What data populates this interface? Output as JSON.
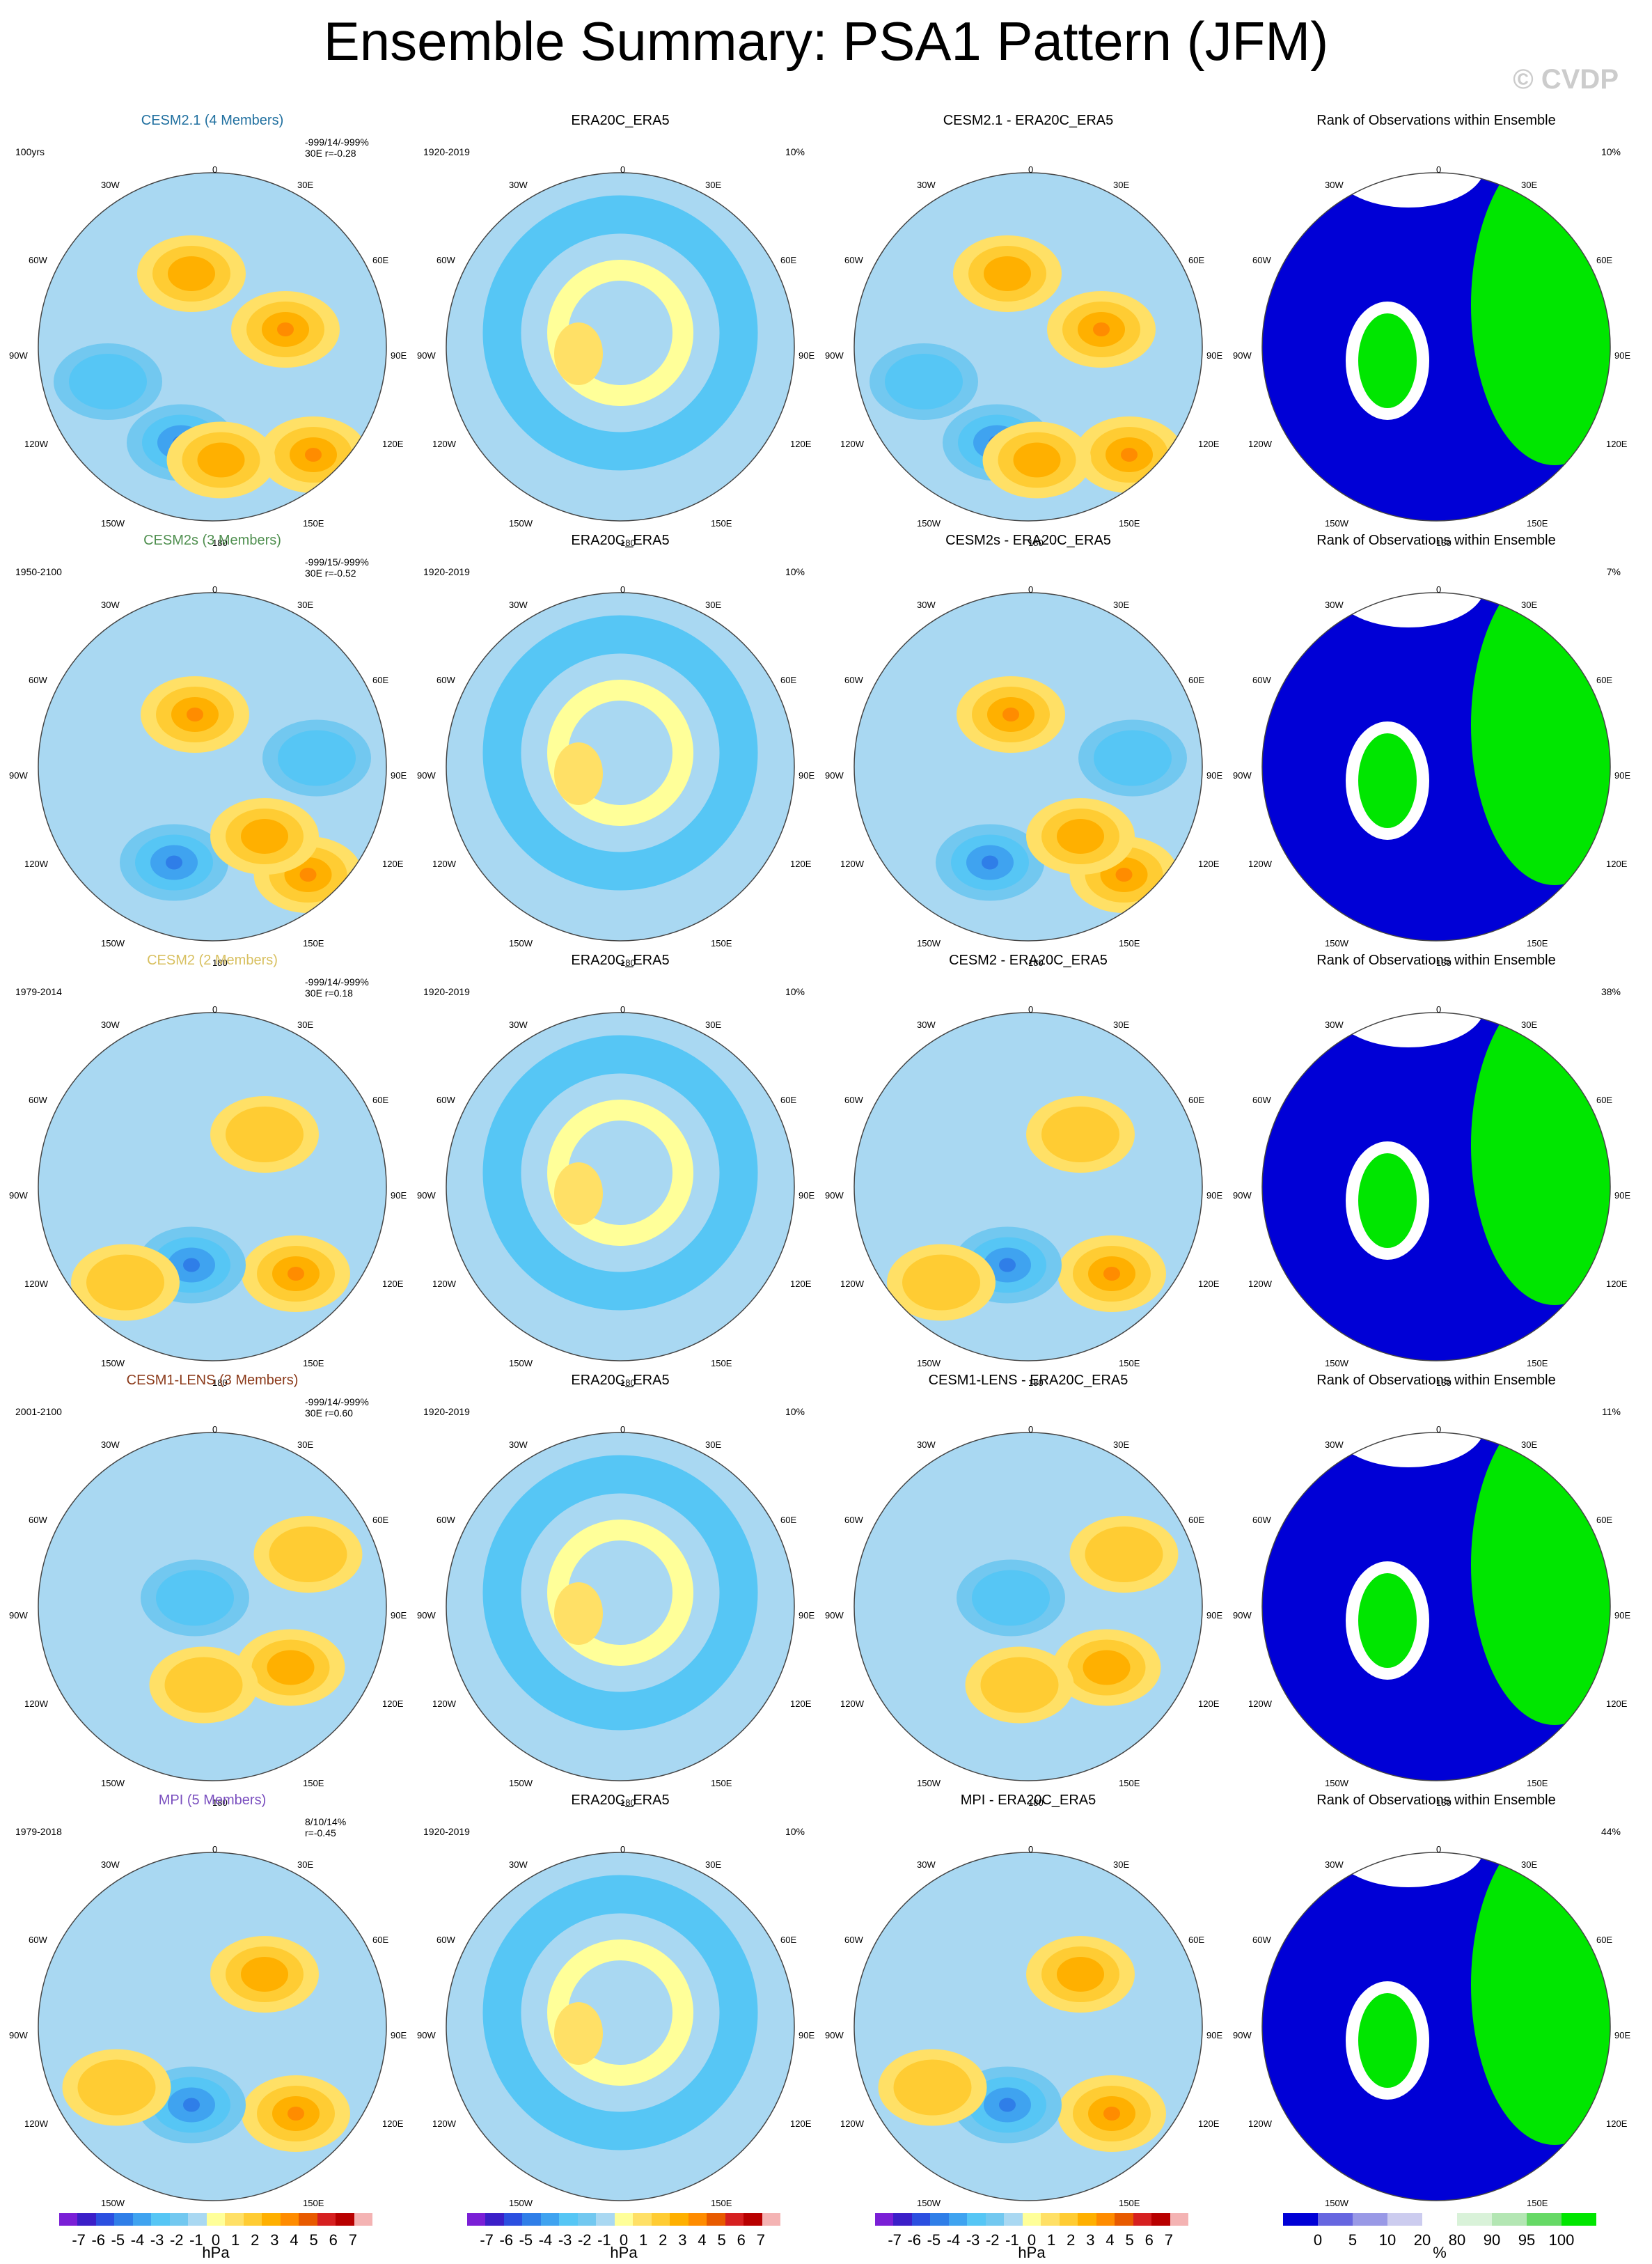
{
  "title": "Ensemble Summary: PSA1 Pattern (JFM)",
  "watermark": "© CVDP",
  "coord_labels": {
    "top": "0",
    "bottom": "180",
    "left": "90W",
    "right": "90E",
    "nl": "60W",
    "nr": "60E",
    "tl": "30W",
    "tr": "30E",
    "ul": "120W",
    "ur": "120E",
    "bl": "150W",
    "br": "150E"
  },
  "rows": [
    {
      "model": "CESM2.1 (4 Members)",
      "model_color": "#1f6f9f",
      "period": "100yrs",
      "stats": [
        "-999/14/-999%",
        "30E r=-0.28"
      ],
      "rank_pct": "10%",
      "diff_title": "CESM2.1 - ERA20C_ERA5",
      "lobes": [
        [
          0.58,
          0.62,
          1.6
        ],
        [
          -0.12,
          -0.42,
          1.0
        ],
        [
          -0.18,
          0.55,
          -1.7
        ],
        [
          0.42,
          -0.1,
          1.2
        ],
        [
          0.05,
          0.65,
          0.9
        ],
        [
          -0.6,
          0.2,
          -0.8
        ]
      ]
    },
    {
      "model": "CESM2s (3 Members)",
      "model_color": "#4f8f4f",
      "period": "1950-2100",
      "stats": [
        "-999/15/-999%",
        "30E r=-0.52"
      ],
      "rank_pct": "7%",
      "diff_title": "CESM2s - ERA20C_ERA5",
      "lobes": [
        [
          0.55,
          0.62,
          1.2
        ],
        [
          -0.1,
          -0.3,
          1.6
        ],
        [
          -0.22,
          0.55,
          -1.9
        ],
        [
          0.6,
          -0.05,
          -0.8
        ],
        [
          0.3,
          0.4,
          1.0
        ]
      ]
    },
    {
      "model": "CESM2 (2 Members)",
      "model_color": "#d8c060",
      "period": "1979-2014",
      "stats": [
        "-999/14/-999%",
        "30E r=0.18"
      ],
      "rank_pct": "38%",
      "diff_title": "CESM2 - ERA20C_ERA5",
      "lobes": [
        [
          0.48,
          0.5,
          1.3
        ],
        [
          -0.12,
          0.45,
          -1.7
        ],
        [
          0.3,
          -0.3,
          0.8
        ],
        [
          -0.5,
          0.55,
          0.6
        ]
      ]
    },
    {
      "model": "CESM1-LENS (3 Members)",
      "model_color": "#8b3a1a",
      "period": "2001-2100",
      "stats": [
        "-999/14/-999%",
        "30E r=0.60"
      ],
      "rank_pct": "11%",
      "diff_title": "CESM1-LENS - ERA20C_ERA5",
      "lobes": [
        [
          0.45,
          0.35,
          0.9
        ],
        [
          -0.05,
          0.45,
          0.8
        ],
        [
          0.55,
          -0.3,
          0.7
        ],
        [
          -0.1,
          -0.05,
          -0.5
        ]
      ]
    },
    {
      "model": "MPI (5 Members)",
      "model_color": "#7a4fbf",
      "period": "1979-2018",
      "stats": [
        "8/10/14%",
        " r=-0.45"
      ],
      "rank_pct": "44%",
      "diff_title": "MPI - ERA20C_ERA5",
      "lobes": [
        [
          0.48,
          0.5,
          1.3
        ],
        [
          -0.12,
          0.45,
          -1.6
        ],
        [
          0.3,
          -0.3,
          1.0
        ],
        [
          -0.55,
          0.35,
          0.7
        ]
      ]
    }
  ],
  "obs_title": "ERA20C_ERA5",
  "obs_period": "1920-2019",
  "obs_pct": "10%",
  "rank_title": "Rank of Observations within Ensemble",
  "palette_hpa": [
    "#7a1fd6",
    "#3b1fc8",
    "#2b4fe0",
    "#2f7ee8",
    "#3fa3f0",
    "#56c6f5",
    "#72c8f0",
    "#a9d8f2",
    "#ffff99",
    "#ffe066",
    "#ffcc33",
    "#ffb000",
    "#ff8c00",
    "#e85a00",
    "#d62020",
    "#b80000",
    "#f4b3b3"
  ],
  "palette_rank": [
    "#0000d6",
    "#6666e0",
    "#9999e6",
    "#ccccef",
    "#ffffff",
    "#d9f2d9",
    "#b3e6b3",
    "#66d966",
    "#00e600"
  ],
  "colorbar_hpa": {
    "ticks": [
      "-7",
      "-6",
      "-5",
      "-4",
      "-3",
      "-2",
      "-1",
      "0",
      "1",
      "2",
      "3",
      "4",
      "5",
      "6",
      "7"
    ],
    "unit": "hPa"
  },
  "colorbar_rank": {
    "ticks": [
      "0",
      "5",
      "10",
      "20",
      "80",
      "90",
      "95",
      "100"
    ],
    "unit": "%"
  }
}
